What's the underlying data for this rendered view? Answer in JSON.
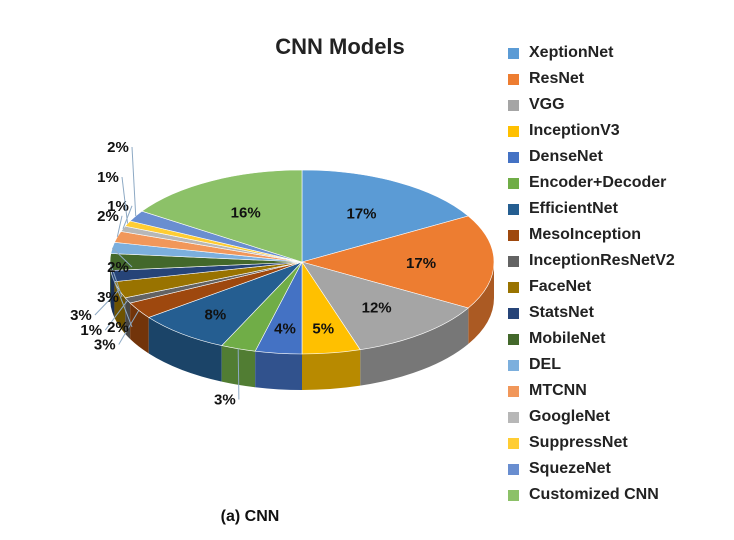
{
  "chart_data": {
    "type": "pie",
    "title": "CNN Models",
    "caption": "(a) CNN",
    "legend_position": "right",
    "three_d": true,
    "categories": [
      "XeptionNet",
      "ResNet",
      "VGG",
      "InceptionV3",
      "DenseNet",
      "Encoder+Decoder",
      "EfficientNet",
      "MesoInception",
      "InceptionResNetV2",
      "FaceNet",
      "StatsNet",
      "MobileNet",
      "DEL",
      "MTCNN",
      "GoogleNet",
      "SuppressNet",
      "SquezeNet",
      "Customized CNN"
    ],
    "values": [
      17,
      17,
      12,
      5,
      4,
      3,
      8,
      3,
      1,
      3,
      2,
      3,
      2,
      2,
      1,
      1,
      2,
      16
    ],
    "labels": [
      "17%",
      "17%",
      "12%",
      "5%",
      "4%",
      "3%",
      "8%",
      "3%",
      "1%",
      "3%",
      "2%",
      "3%",
      "2%",
      "2%",
      "1%",
      "1%",
      "2%",
      "16%"
    ],
    "colors": [
      "#5b9bd5",
      "#ed7d31",
      "#a5a5a5",
      "#ffc000",
      "#4472c4",
      "#70ad47",
      "#255e91",
      "#9e480e",
      "#636363",
      "#997300",
      "#264478",
      "#43682b",
      "#7cafdd",
      "#f1975a",
      "#b7b7b7",
      "#ffcd33",
      "#698ed0",
      "#8cc168"
    ]
  }
}
